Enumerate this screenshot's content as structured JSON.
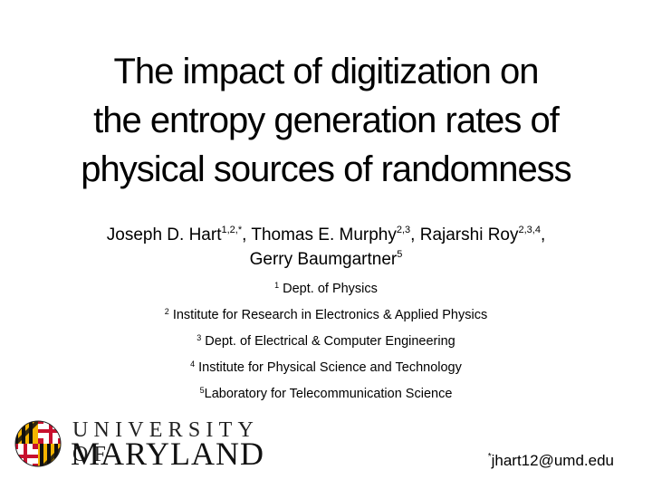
{
  "title": {
    "line1": "The impact of digitization on",
    "line2": "the entropy generation rates of",
    "line3": "physical sources of randomness"
  },
  "authors": [
    {
      "name": "Joseph D. Hart",
      "sup": "1,2,*",
      "sep": ", "
    },
    {
      "name": "Thomas E. Murphy",
      "sup": "2,3",
      "sep": ", "
    },
    {
      "name": "Rajarshi Roy",
      "sup": "2,3,4",
      "sep": ","
    },
    {
      "name": "Gerry Baumgartner",
      "sup": "5",
      "sep": ""
    }
  ],
  "affiliations": [
    {
      "num": "1",
      "text": " Dept. of Physics"
    },
    {
      "num": "2",
      "text": " Institute for Research in Electronics & Applied Physics"
    },
    {
      "num": "3",
      "text": " Dept. of Electrical & Computer Engineering"
    },
    {
      "num": "4",
      "text": " Institute for Physical Science and Technology"
    },
    {
      "num": "5",
      "text": "Laboratory for Telecommunication Science"
    }
  ],
  "logo": {
    "line1": "UNIVERSITY OF",
    "line2": "MARYLAND",
    "colors": {
      "red": "#c8102e",
      "gold": "#f5b400",
      "black": "#111111",
      "white": "#ffffff"
    }
  },
  "contact": {
    "marker": "*",
    "email": "jhart12@umd.edu"
  }
}
